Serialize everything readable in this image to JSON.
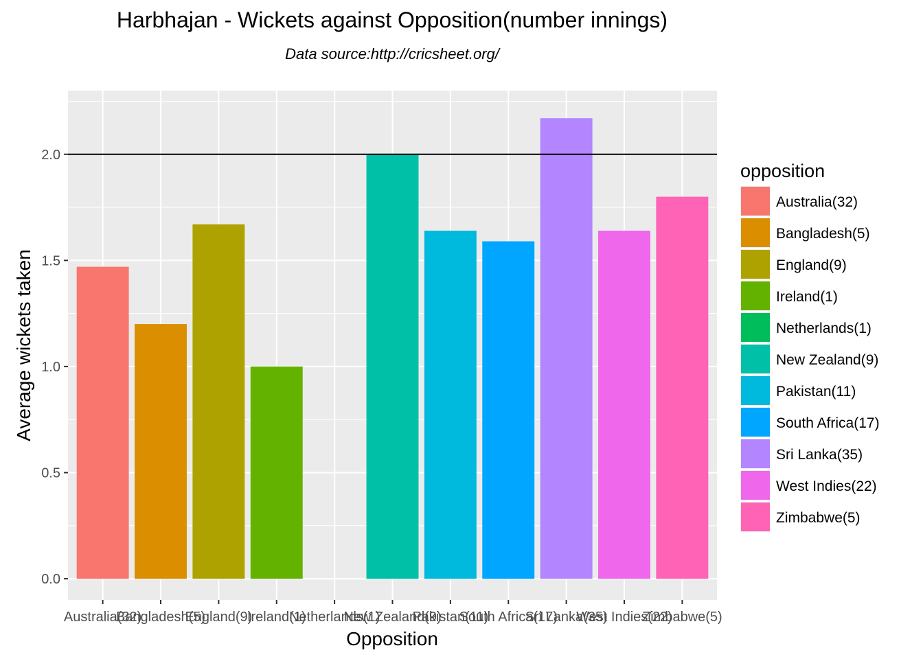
{
  "chart_data": {
    "type": "bar",
    "title": "Harbhajan - Wickets against Opposition(number innings)",
    "subtitle": "Data source:http://cricsheet.org/",
    "xlabel": "Opposition",
    "ylabel": "Average wickets taken",
    "categories": [
      "Australia(32)",
      "Bangladesh(5)",
      "England(9)",
      "Ireland(1)",
      "Netherlands(1)",
      "New Zealand(9)",
      "Pakistan(11)",
      "South Africa(17)",
      "Sri Lanka(35)",
      "West Indies(22)",
      "Zimbabwe(5)"
    ],
    "values": [
      1.47,
      1.2,
      1.67,
      1.0,
      0.0,
      2.0,
      1.64,
      1.59,
      2.17,
      1.64,
      1.8
    ],
    "colors": [
      "#F8766D",
      "#DB8E00",
      "#AEA200",
      "#64B200",
      "#00BD5C",
      "#00C1A7",
      "#00BADE",
      "#00A6FF",
      "#B385FF",
      "#EF67EB",
      "#FF63B6"
    ],
    "ylim": [
      -0.1,
      2.3
    ],
    "yticks": [
      0.0,
      0.5,
      1.0,
      1.5,
      2.0
    ],
    "ytick_labels": [
      "0.0",
      "0.5",
      "1.0",
      "1.5",
      "2.0"
    ],
    "hline": 2.0,
    "grid": true,
    "legend": {
      "title": "opposition",
      "position": "right"
    }
  }
}
